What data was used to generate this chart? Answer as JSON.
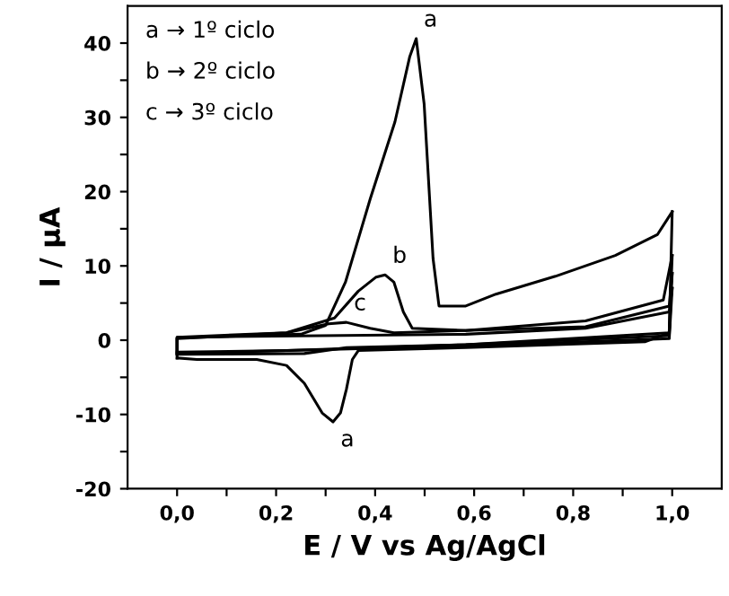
{
  "chart_data": {
    "type": "line",
    "xlabel": "E / V vs Ag/AgCl",
    "ylabel": "I / µA",
    "xlim": [
      -0.1,
      1.1
    ],
    "ylim": [
      -20,
      45
    ],
    "xticks": [
      {
        "value": 0.0,
        "label": "0,0"
      },
      {
        "value": 0.1,
        "label": null
      },
      {
        "value": 0.2,
        "label": "0,2"
      },
      {
        "value": 0.3,
        "label": null
      },
      {
        "value": 0.4,
        "label": "0,4"
      },
      {
        "value": 0.5,
        "label": null
      },
      {
        "value": 0.6,
        "label": "0,6"
      },
      {
        "value": 0.7,
        "label": null
      },
      {
        "value": 0.8,
        "label": "0,8"
      },
      {
        "value": 0.9,
        "label": null
      },
      {
        "value": 1.0,
        "label": "1,0"
      }
    ],
    "yticks": [
      -20,
      {
        "value": -15,
        "label": null
      },
      -10,
      {
        "value": -5,
        "label": null
      },
      0,
      {
        "value": 5,
        "label": null
      },
      10,
      {
        "value": 15,
        "label": null
      },
      20,
      {
        "value": 25,
        "label": null
      },
      30,
      {
        "value": 35,
        "label": null
      },
      40
    ],
    "marker": "none",
    "line_style": "solid",
    "grid": false,
    "legend": false,
    "series": [
      {
        "color": "#000000",
        "x": [
          0,
          0,
          0.25,
          0.3,
          0.34,
          0.39,
          0.44,
          0.47,
          0.483,
          0.499,
          0.517,
          0.529,
          0.583,
          0.644,
          0.764,
          0.885,
          0.97,
          1.0
        ],
        "values": [
          -2.4,
          0.3,
          0.8,
          2,
          7.8,
          19,
          29.4,
          38.2,
          40.6,
          31.8,
          11,
          4.6,
          4.6,
          6.2,
          8.6,
          11.4,
          14.2,
          17.3
        ]
      },
      {
        "color": "#000000",
        "x": [
          0,
          0.04,
          0.161,
          0.221,
          0.257,
          0.293,
          0.315,
          0.33,
          0.342,
          0.354,
          0.366,
          0.583,
          0.946,
          0.994,
          1.0
        ],
        "values": [
          -2.4,
          -2.6,
          -2.6,
          -3.4,
          -5.8,
          -9.8,
          -11.0,
          -9.8,
          -6.6,
          -2.6,
          -1.4,
          -1.0,
          -0.2,
          1.0,
          17.3
        ]
      },
      {
        "color": "#000000",
        "x": [
          0,
          0,
          0.221,
          0.318,
          0.366,
          0.402,
          0.42,
          0.438,
          0.457,
          0.475,
          0.583,
          0.825,
          0.982,
          1.0
        ],
        "values": [
          -1.9,
          0.2,
          1.0,
          3.0,
          6.6,
          8.5,
          8.8,
          7.8,
          3.8,
          1.6,
          1.3,
          2.6,
          5.4,
          11.4
        ]
      },
      {
        "color": "#000000",
        "x": [
          0,
          0.257,
          0.342,
          0.583,
          0.994,
          1.0
        ],
        "values": [
          -1.9,
          -1.8,
          -1.0,
          -0.6,
          1.0,
          11.4
        ]
      },
      {
        "color": "#000000",
        "x": [
          0,
          0,
          0.221,
          0.306,
          0.342,
          0.39,
          0.438,
          0.825,
          0.994,
          1.0
        ],
        "values": [
          -1.6,
          0.4,
          1.0,
          2.2,
          2.4,
          1.6,
          1.0,
          1.8,
          4.6,
          9.0
        ]
      },
      {
        "color": "#000000",
        "x": [
          0,
          0.221,
          0.583,
          0.994,
          1.0
        ],
        "values": [
          -1.6,
          -1.4,
          -0.6,
          0.6,
          9.0
        ]
      },
      {
        "color": "#000000",
        "x": [
          0,
          0,
          0.583,
          0.825,
          0.994,
          1.0
        ],
        "values": [
          -1.8,
          0.4,
          0.8,
          1.6,
          3.8,
          7.0
        ]
      },
      {
        "color": "#000000",
        "x": [
          0,
          0.221,
          0.583,
          0.994,
          1.0
        ],
        "values": [
          -1.8,
          -1.4,
          -0.8,
          0.2,
          7.0
        ]
      }
    ],
    "annotations": [
      "a → 1º ciclo",
      "b → 2º ciclo",
      "c → 3º ciclo",
      {
        "text": "a",
        "x": 0.483,
        "y": 40.6
      },
      {
        "text": "b",
        "x": 0.42,
        "y": 8.8
      },
      {
        "text": "c",
        "x": 0.342,
        "y": 2.4
      },
      {
        "text": "a",
        "x": 0.315,
        "y": -11.0
      }
    ]
  }
}
